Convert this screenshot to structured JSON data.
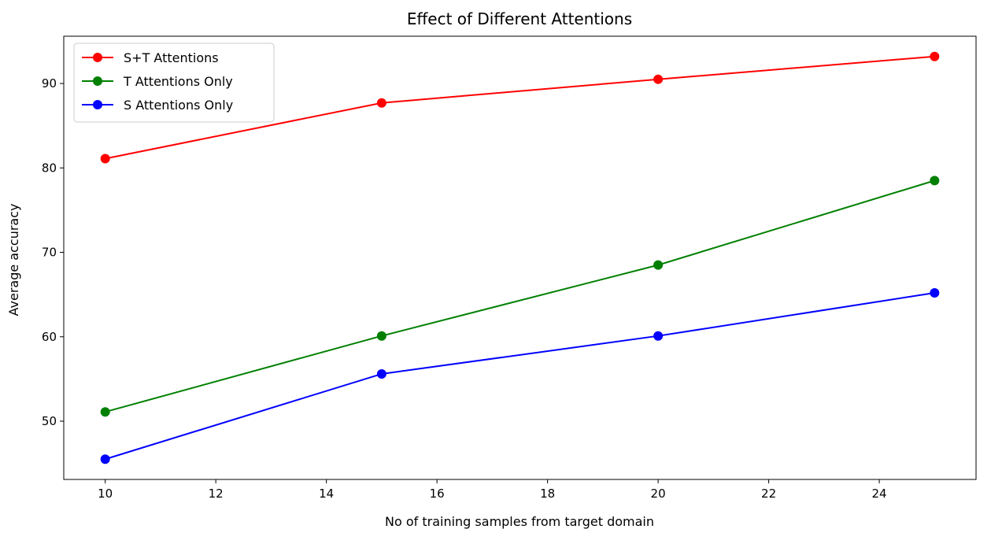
{
  "chart_data": {
    "type": "line",
    "title": "Effect of Different Attentions",
    "xlabel": "No of training samples from target domain",
    "ylabel": "Average accuracy",
    "x": [
      10,
      15,
      20,
      25
    ],
    "xlim": [
      9.25,
      25.75
    ],
    "ylim": [
      43.1,
      95.6
    ],
    "xticks": [
      10,
      12,
      14,
      16,
      18,
      20,
      22,
      24
    ],
    "yticks": [
      50,
      60,
      70,
      80,
      90
    ],
    "grid": false,
    "legend_position": "top-left",
    "series": [
      {
        "name": "S+T Attentions",
        "color": "#ff0000",
        "values": [
          81.1,
          87.7,
          90.5,
          93.2
        ]
      },
      {
        "name": "T Attentions Only",
        "color": "#008000",
        "values": [
          51.1,
          60.1,
          68.5,
          78.5
        ]
      },
      {
        "name": "S Attentions Only",
        "color": "#0000ff",
        "values": [
          45.5,
          55.6,
          60.1,
          65.2
        ]
      }
    ]
  }
}
